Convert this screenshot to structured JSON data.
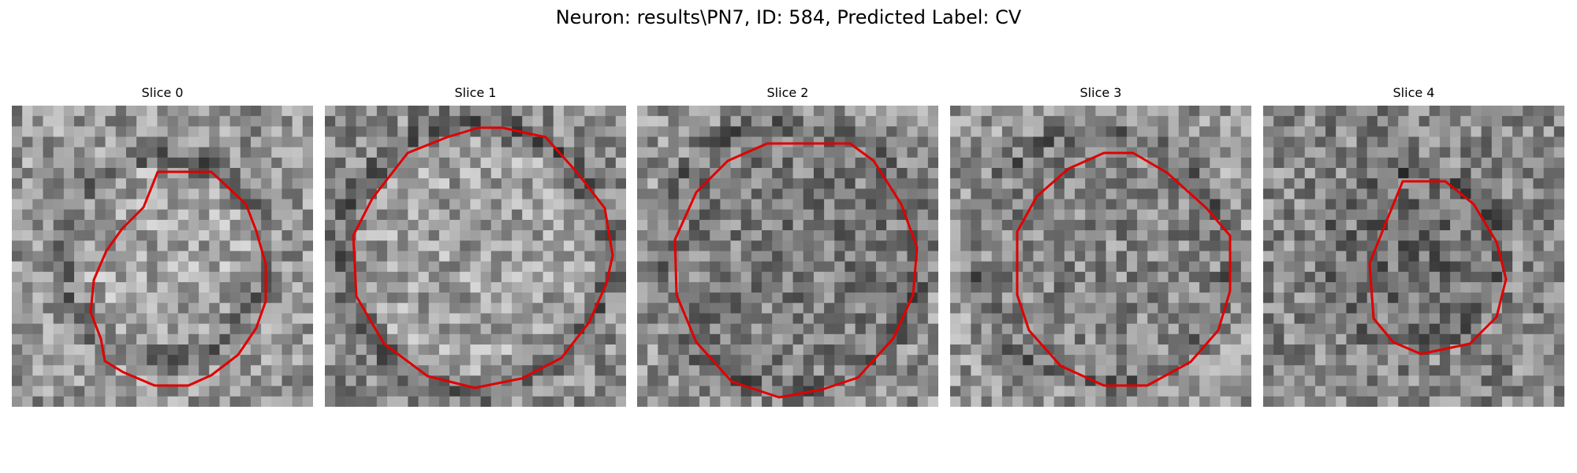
{
  "figure": {
    "title": "Neuron: results\\PN7, ID: 584, Predicted Label: CV",
    "panels": [
      {
        "title": "Slice 0",
        "contour_color": "#e00000"
      },
      {
        "title": "Slice 1",
        "contour_color": "#e00000"
      },
      {
        "title": "Slice 2",
        "contour_color": "#e00000"
      },
      {
        "title": "Slice 3",
        "contour_color": "#e00000"
      },
      {
        "title": "Slice 4",
        "contour_color": "#e00000"
      }
    ]
  }
}
